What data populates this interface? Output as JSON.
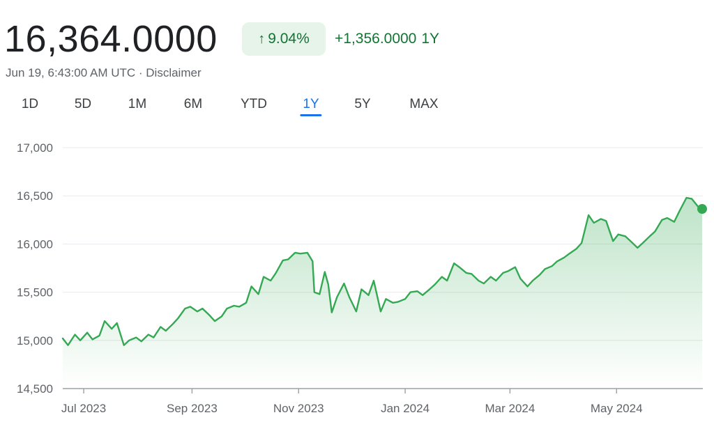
{
  "header": {
    "price": "16,364.0000",
    "percent_change": "9.04%",
    "percent_arrow": "↑",
    "absolute_change": "+1,356.0000",
    "change_period": "1Y",
    "timestamp": "Jun 19, 6:43:00 AM UTC · Disclaimer"
  },
  "tabs": [
    {
      "label": "1D",
      "active": false
    },
    {
      "label": "5D",
      "active": false
    },
    {
      "label": "1M",
      "active": false
    },
    {
      "label": "6M",
      "active": false
    },
    {
      "label": "YTD",
      "active": false
    },
    {
      "label": "1Y",
      "active": true
    },
    {
      "label": "5Y",
      "active": false
    },
    {
      "label": "MAX",
      "active": false
    }
  ],
  "colors": {
    "line": "#34a853",
    "positive_text": "#137333",
    "positive_bg": "#e6f4ea",
    "tab_active": "#1a73e8"
  },
  "chart_data": {
    "type": "area",
    "title": "",
    "xlabel": "",
    "ylabel": "",
    "ylim": [
      14500,
      17000
    ],
    "yticks": [
      17000,
      16500,
      16000,
      15500,
      15000,
      14500
    ],
    "ytick_labels": [
      "17,000",
      "16,500",
      "16,000",
      "15,500",
      "15,000",
      "14,500"
    ],
    "xticks": [
      "2023-07-01",
      "2023-09-01",
      "2023-11-01",
      "2024-01-01",
      "2024-03-01",
      "2024-05-01"
    ],
    "xtick_labels": [
      "Jul 2023",
      "Sep 2023",
      "Nov 2023",
      "Jan 2024",
      "Mar 2024",
      "May 2024"
    ],
    "grid": true,
    "series": [
      {
        "points": [
          [
            "2023-06-19",
            15020
          ],
          [
            "2023-06-22",
            14950
          ],
          [
            "2023-06-26",
            15060
          ],
          [
            "2023-06-29",
            15000
          ],
          [
            "2023-07-03",
            15080
          ],
          [
            "2023-07-06",
            15010
          ],
          [
            "2023-07-10",
            15050
          ],
          [
            "2023-07-13",
            15200
          ],
          [
            "2023-07-17",
            15120
          ],
          [
            "2023-07-20",
            15180
          ],
          [
            "2023-07-24",
            14950
          ],
          [
            "2023-07-27",
            15000
          ],
          [
            "2023-07-31",
            15030
          ],
          [
            "2023-08-03",
            14990
          ],
          [
            "2023-08-07",
            15060
          ],
          [
            "2023-08-10",
            15030
          ],
          [
            "2023-08-14",
            15140
          ],
          [
            "2023-08-17",
            15100
          ],
          [
            "2023-08-21",
            15170
          ],
          [
            "2023-08-24",
            15230
          ],
          [
            "2023-08-28",
            15330
          ],
          [
            "2023-08-31",
            15350
          ],
          [
            "2023-09-04",
            15300
          ],
          [
            "2023-09-07",
            15330
          ],
          [
            "2023-09-11",
            15260
          ],
          [
            "2023-09-14",
            15200
          ],
          [
            "2023-09-18",
            15250
          ],
          [
            "2023-09-21",
            15330
          ],
          [
            "2023-09-25",
            15360
          ],
          [
            "2023-09-28",
            15350
          ],
          [
            "2023-10-02",
            15390
          ],
          [
            "2023-10-05",
            15560
          ],
          [
            "2023-10-09",
            15480
          ],
          [
            "2023-10-12",
            15660
          ],
          [
            "2023-10-16",
            15620
          ],
          [
            "2023-10-19",
            15700
          ],
          [
            "2023-10-23",
            15830
          ],
          [
            "2023-10-26",
            15840
          ],
          [
            "2023-10-30",
            15910
          ],
          [
            "2023-11-02",
            15900
          ],
          [
            "2023-11-06",
            15910
          ],
          [
            "2023-11-09",
            15820
          ],
          [
            "2023-11-10",
            15500
          ],
          [
            "2023-11-13",
            15480
          ],
          [
            "2023-11-16",
            15710
          ],
          [
            "2023-11-18",
            15580
          ],
          [
            "2023-11-20",
            15290
          ],
          [
            "2023-11-23",
            15450
          ],
          [
            "2023-11-27",
            15590
          ],
          [
            "2023-11-30",
            15450
          ],
          [
            "2023-12-04",
            15300
          ],
          [
            "2023-12-07",
            15530
          ],
          [
            "2023-12-11",
            15470
          ],
          [
            "2023-12-14",
            15620
          ],
          [
            "2023-12-18",
            15300
          ],
          [
            "2023-12-21",
            15430
          ],
          [
            "2023-12-25",
            15390
          ],
          [
            "2023-12-28",
            15400
          ],
          [
            "2024-01-01",
            15430
          ],
          [
            "2024-01-04",
            15500
          ],
          [
            "2024-01-08",
            15510
          ],
          [
            "2024-01-11",
            15470
          ],
          [
            "2024-01-15",
            15530
          ],
          [
            "2024-01-18",
            15580
          ],
          [
            "2024-01-22",
            15660
          ],
          [
            "2024-01-25",
            15620
          ],
          [
            "2024-01-29",
            15800
          ],
          [
            "2024-02-01",
            15760
          ],
          [
            "2024-02-05",
            15700
          ],
          [
            "2024-02-08",
            15690
          ],
          [
            "2024-02-12",
            15620
          ],
          [
            "2024-02-15",
            15590
          ],
          [
            "2024-02-19",
            15660
          ],
          [
            "2024-02-22",
            15620
          ],
          [
            "2024-02-26",
            15700
          ],
          [
            "2024-02-29",
            15720
          ],
          [
            "2024-03-04",
            15760
          ],
          [
            "2024-03-07",
            15640
          ],
          [
            "2024-03-11",
            15560
          ],
          [
            "2024-03-14",
            15620
          ],
          [
            "2024-03-18",
            15680
          ],
          [
            "2024-03-21",
            15740
          ],
          [
            "2024-03-25",
            15770
          ],
          [
            "2024-03-28",
            15820
          ],
          [
            "2024-04-01",
            15860
          ],
          [
            "2024-04-04",
            15900
          ],
          [
            "2024-04-08",
            15950
          ],
          [
            "2024-04-11",
            16010
          ],
          [
            "2024-04-15",
            16300
          ],
          [
            "2024-04-18",
            16220
          ],
          [
            "2024-04-22",
            16260
          ],
          [
            "2024-04-25",
            16240
          ],
          [
            "2024-04-29",
            16030
          ],
          [
            "2024-05-02",
            16100
          ],
          [
            "2024-05-06",
            16080
          ],
          [
            "2024-05-09",
            16030
          ],
          [
            "2024-05-13",
            15960
          ],
          [
            "2024-05-16",
            16010
          ],
          [
            "2024-05-20",
            16080
          ],
          [
            "2024-05-23",
            16130
          ],
          [
            "2024-05-27",
            16250
          ],
          [
            "2024-05-30",
            16270
          ],
          [
            "2024-06-03",
            16230
          ],
          [
            "2024-06-06",
            16340
          ],
          [
            "2024-06-10",
            16480
          ],
          [
            "2024-06-13",
            16470
          ],
          [
            "2024-06-17",
            16380
          ],
          [
            "2024-06-19",
            16364
          ]
        ]
      }
    ]
  }
}
